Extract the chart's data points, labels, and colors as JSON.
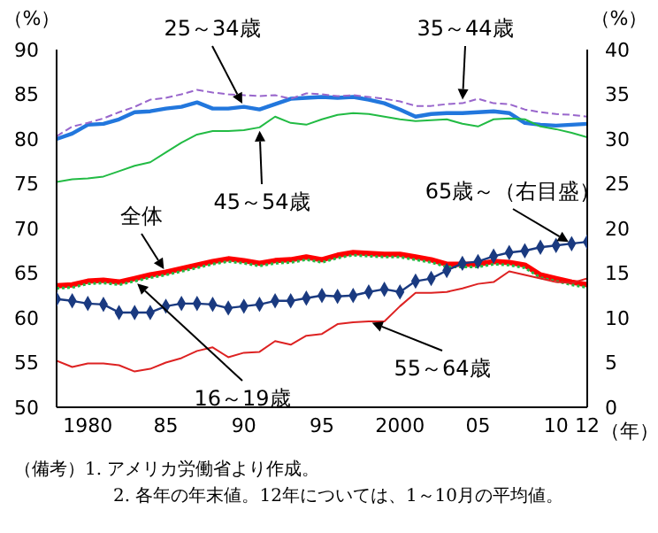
{
  "chart_data": {
    "type": "line",
    "ylabel": "（%）",
    "y2label": "（%）",
    "xlabel": "（年）",
    "x": [
      1978,
      1979,
      1980,
      1981,
      1982,
      1983,
      1984,
      1985,
      1986,
      1987,
      1988,
      1989,
      1990,
      1991,
      1992,
      1993,
      1994,
      1995,
      1996,
      1997,
      1998,
      1999,
      2000,
      2001,
      2002,
      2003,
      2004,
      2005,
      2006,
      2007,
      2008,
      2009,
      2010,
      2011,
      2012
    ],
    "xlim": [
      1978,
      2012
    ],
    "xticks": [
      1980,
      {
        "value": 1985,
        "label": "85"
      },
      {
        "value": 1990,
        "label": "90"
      },
      {
        "value": 1995,
        "label": "95"
      },
      2000,
      {
        "value": 2005,
        "label": "05"
      },
      {
        "value": 2010,
        "label": "10"
      },
      {
        "value": 2012,
        "label": "12"
      }
    ],
    "ylim": [
      50,
      90
    ],
    "yticks": [
      50,
      55,
      60,
      65,
      70,
      75,
      80,
      85,
      90
    ],
    "y2lim": [
      0,
      40
    ],
    "y2ticks": [
      0,
      5,
      10,
      15,
      20,
      25,
      30,
      35,
      40
    ],
    "grid": false,
    "legend": false,
    "marker": "none",
    "line_style": "solid",
    "series": [
      {
        "name": "25～34歳",
        "color": "#2277dd",
        "values": [
          80.0,
          80.6,
          81.6,
          81.7,
          82.2,
          83.0,
          83.1,
          83.4,
          83.6,
          84.1,
          83.4,
          83.4,
          83.6,
          83.3,
          83.9,
          84.5,
          84.6,
          84.7,
          84.6,
          84.7,
          84.4,
          84.0,
          83.3,
          82.5,
          82.8,
          82.9,
          82.9,
          83.0,
          83.1,
          82.9,
          81.8,
          81.6,
          81.5,
          81.6,
          81.7
        ]
      },
      {
        "name": "35～44歳",
        "color": "#9966cc",
        "line_style": "dashed",
        "values": [
          80.3,
          81.4,
          81.8,
          82.3,
          83.0,
          83.6,
          84.4,
          84.6,
          85.0,
          85.5,
          85.2,
          85.0,
          84.9,
          84.8,
          84.9,
          84.5,
          85.1,
          85.0,
          84.8,
          84.9,
          84.7,
          84.5,
          84.2,
          83.7,
          83.7,
          83.9,
          84.0,
          84.5,
          84.0,
          83.9,
          83.3,
          83.0,
          82.8,
          82.7,
          82.5
        ]
      },
      {
        "name": "45～54歳",
        "color": "#22bb44",
        "values": [
          75.2,
          75.5,
          75.6,
          75.8,
          76.4,
          77.0,
          77.4,
          78.5,
          79.6,
          80.5,
          80.9,
          80.9,
          81.0,
          81.3,
          82.5,
          81.8,
          81.6,
          82.2,
          82.7,
          82.9,
          82.8,
          82.5,
          82.2,
          82.0,
          82.1,
          82.2,
          81.7,
          81.4,
          82.2,
          82.3,
          82.2,
          81.4,
          81.1,
          80.7,
          80.2
        ]
      },
      {
        "name": "全体",
        "color": "#ff0000",
        "values": [
          63.6,
          63.7,
          64.1,
          64.2,
          64.0,
          64.4,
          64.8,
          65.1,
          65.5,
          65.9,
          66.3,
          66.6,
          66.4,
          66.1,
          66.4,
          66.5,
          66.8,
          66.5,
          67.0,
          67.3,
          67.2,
          67.1,
          67.1,
          66.8,
          66.5,
          66.0,
          66.0,
          66.0,
          66.3,
          66.2,
          65.9,
          64.8,
          64.4,
          64.0,
          63.7
        ]
      },
      {
        "name": "16～19歳",
        "color": "#22bb44",
        "line_style": "dotted",
        "values": [
          63.3,
          63.4,
          63.8,
          63.9,
          63.7,
          64.1,
          64.5,
          64.8,
          65.2,
          65.6,
          66.0,
          66.3,
          66.1,
          65.8,
          66.1,
          66.2,
          66.5,
          66.2,
          66.7,
          67.0,
          66.9,
          66.8,
          66.8,
          66.5,
          66.2,
          65.7,
          65.7,
          65.7,
          66.0,
          65.9,
          65.6,
          64.5,
          64.1,
          63.7,
          63.4
        ]
      },
      {
        "name": "55～64歳",
        "color": "#dd2222",
        "values": [
          55.2,
          54.5,
          54.9,
          54.9,
          54.7,
          54.0,
          54.3,
          55.0,
          55.5,
          56.3,
          56.7,
          55.6,
          56.1,
          56.2,
          57.4,
          57.0,
          58.0,
          58.2,
          59.3,
          59.5,
          59.6,
          59.6,
          61.3,
          62.8,
          62.8,
          62.9,
          63.3,
          63.8,
          64.0,
          65.2,
          64.8,
          64.4,
          64.0,
          63.9,
          64.4
        ]
      },
      {
        "name": "65歳～（右目盛）",
        "color": "#1a3a80",
        "axis": "y2",
        "marker": "diamond",
        "values": [
          12.1,
          11.9,
          11.6,
          11.5,
          10.6,
          10.6,
          10.6,
          11.3,
          11.6,
          11.6,
          11.5,
          11.1,
          11.3,
          11.5,
          11.9,
          11.9,
          12.2,
          12.5,
          12.4,
          12.5,
          12.9,
          13.2,
          12.9,
          14.1,
          14.4,
          15.3,
          16.1,
          16.3,
          16.9,
          17.3,
          17.5,
          17.9,
          18.1,
          18.3,
          18.5
        ]
      }
    ],
    "annotations": [
      "（備考）1. アメリカ労働省より作成。",
      "2. 各年の年末値。12年については、1～10月の平均値。"
    ]
  }
}
